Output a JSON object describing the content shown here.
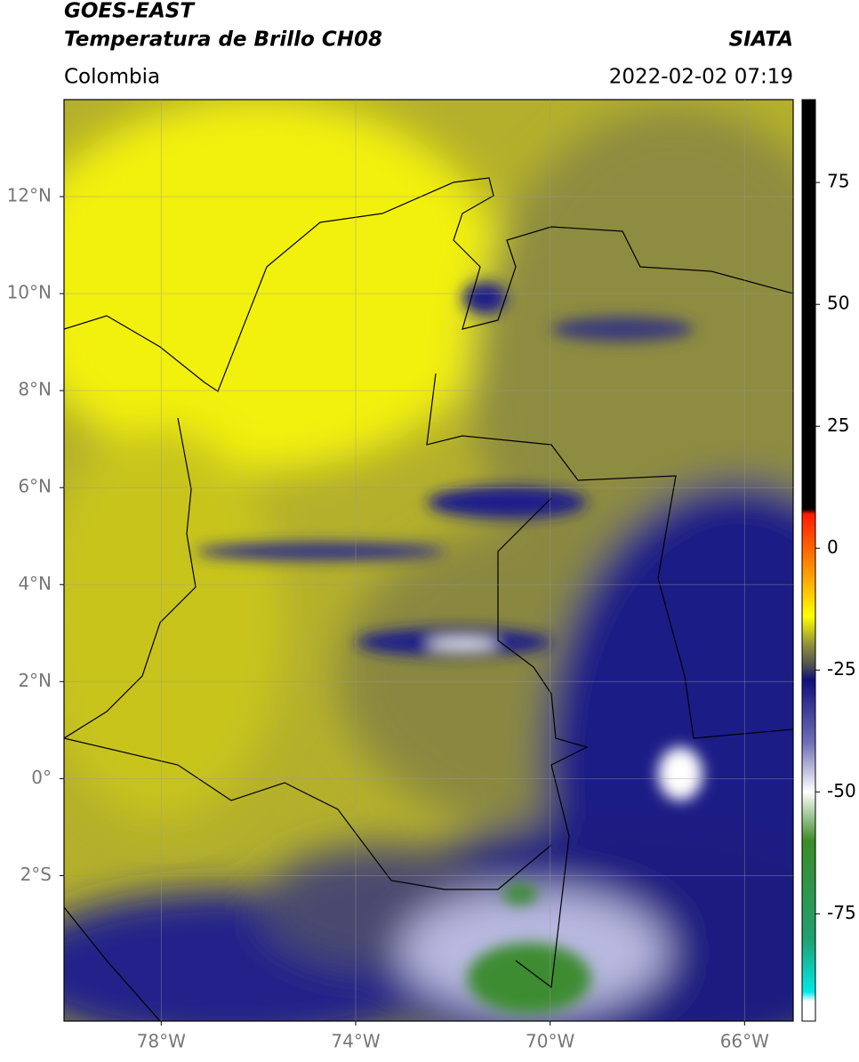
{
  "chart_data": {
    "type": "map",
    "title": "GOES-EAST",
    "subtitle": "Temperatura de Brillo CH08",
    "region": "Colombia",
    "source": "SIATA",
    "datetime": "2022-02-02 07:19",
    "xlim": [
      -80,
      -65
    ],
    "ylim": [
      -5,
      14
    ],
    "xticks": [
      {
        "value": -78,
        "label": "78°W"
      },
      {
        "value": -74,
        "label": "74°W"
      },
      {
        "value": -70,
        "label": "70°W"
      },
      {
        "value": -66,
        "label": "66°W"
      }
    ],
    "yticks": [
      {
        "value": 12,
        "label": "12°N"
      },
      {
        "value": 10,
        "label": "10°N"
      },
      {
        "value": 8,
        "label": "8°N"
      },
      {
        "value": 6,
        "label": "6°N"
      },
      {
        "value": 4,
        "label": "4°N"
      },
      {
        "value": 2,
        "label": "2°N"
      },
      {
        "value": 0,
        "label": "0°"
      },
      {
        "value": -2,
        "label": "2°S"
      }
    ],
    "grid": true,
    "colorbar": {
      "lim": [
        -97,
        92
      ],
      "ticks": [
        75,
        50,
        25,
        0,
        -25,
        -50,
        -75
      ],
      "colormap": [
        {
          "value": 92,
          "color": "#000000"
        },
        {
          "value": 8,
          "color": "#000000"
        },
        {
          "value": 7,
          "color": "#ff1a00"
        },
        {
          "value": -5,
          "color": "#ff9900"
        },
        {
          "value": -14,
          "color": "#ffff00"
        },
        {
          "value": -20,
          "color": "#8c8c3c"
        },
        {
          "value": -24,
          "color": "#505050"
        },
        {
          "value": -27,
          "color": "#10107a"
        },
        {
          "value": -40,
          "color": "#7070b8"
        },
        {
          "value": -50,
          "color": "#ffffff"
        },
        {
          "value": -60,
          "color": "#3c8c28"
        },
        {
          "value": -80,
          "color": "#20a070"
        },
        {
          "value": -91,
          "color": "#00e8e8"
        },
        {
          "value": -93,
          "color": "#ffffff"
        },
        {
          "value": -97,
          "color": "#ffffff"
        }
      ]
    }
  }
}
